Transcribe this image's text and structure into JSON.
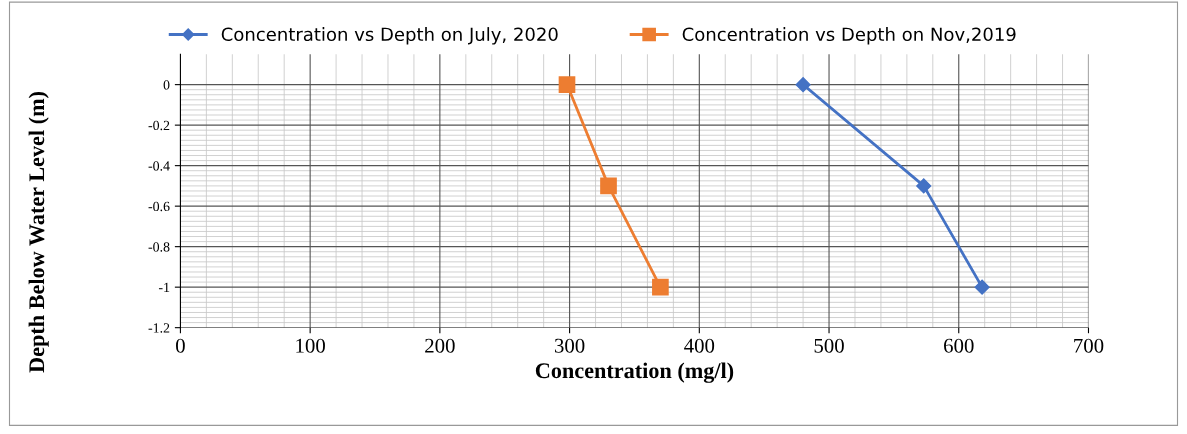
{
  "chart_data": {
    "type": "line",
    "xlabel": "Concentration (mg/l)",
    "ylabel": "Depth Below Water Level (m)",
    "series": [
      {
        "name": "Concentration vs Depth on July, 2020",
        "color": "#4472c4",
        "marker": "diamond",
        "x": [
          480,
          573,
          618
        ],
        "values": [
          0,
          -0.5,
          -1
        ]
      },
      {
        "name": "Concentration vs Depth on Nov,2019",
        "color": "#ed7d31",
        "marker": "square",
        "x": [
          298,
          330,
          370
        ],
        "values": [
          0,
          -0.5,
          -1
        ]
      }
    ],
    "xlim": [
      0,
      700
    ],
    "xticks": [
      0,
      100,
      200,
      300,
      400,
      500,
      600,
      700
    ],
    "ylim": [
      -1.2,
      0.15
    ],
    "yticks": [
      {
        "value": 0,
        "label": "0"
      },
      {
        "value": -0.2,
        "label": "-0.2"
      },
      {
        "value": -0.4,
        "label": "-0.4"
      },
      {
        "value": -0.6,
        "label": "-0.6"
      },
      {
        "value": -0.8,
        "label": "-0.8"
      },
      {
        "value": -1,
        "label": "-1"
      },
      {
        "value": -1.2,
        "label": "-1.2"
      }
    ],
    "grid": true,
    "legend": "top",
    "line_style": "solid"
  }
}
